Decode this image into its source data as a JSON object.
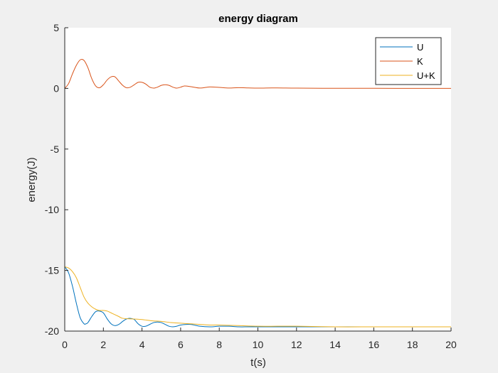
{
  "figure": {
    "background": "#f0f0f0",
    "axes_background": "#ffffff"
  },
  "chart_data": {
    "type": "line",
    "title": "energy diagram",
    "xlabel": "t(s)",
    "ylabel": "energy(J)",
    "xlim": [
      0,
      20
    ],
    "ylim": [
      -20,
      5
    ],
    "xticks": [
      0,
      2,
      4,
      6,
      8,
      10,
      12,
      14,
      16,
      18,
      20
    ],
    "yticks": [
      -20,
      -15,
      -10,
      -5,
      0,
      5
    ],
    "grid": false,
    "legend_position": "top-right",
    "series": [
      {
        "name": "U",
        "color": "#0072bd",
        "x": [
          0,
          0.2,
          0.4,
          0.6,
          0.8,
          1.0,
          1.1,
          1.2,
          1.4,
          1.6,
          1.8,
          2.0,
          2.2,
          2.4,
          2.6,
          2.8,
          3.0,
          3.2,
          3.4,
          3.6,
          3.8,
          4.0,
          4.2,
          4.4,
          4.6,
          4.8,
          5.0,
          5.2,
          5.4,
          5.6,
          5.8,
          6.0,
          6.5,
          7.0,
          7.5,
          8.0,
          8.5,
          9.0,
          9.5,
          10,
          11,
          12,
          14,
          16,
          18,
          20
        ],
        "y": [
          -14.7,
          -15.2,
          -16.3,
          -17.7,
          -18.9,
          -19.4,
          -19.4,
          -19.3,
          -18.8,
          -18.4,
          -18.35,
          -18.5,
          -19.0,
          -19.4,
          -19.55,
          -19.45,
          -19.2,
          -19.0,
          -18.95,
          -19.05,
          -19.4,
          -19.6,
          -19.6,
          -19.45,
          -19.3,
          -19.25,
          -19.3,
          -19.45,
          -19.6,
          -19.65,
          -19.6,
          -19.5,
          -19.45,
          -19.6,
          -19.65,
          -19.6,
          -19.6,
          -19.65,
          -19.65,
          -19.65,
          -19.65,
          -19.65,
          -19.65,
          -19.65,
          -19.65,
          -19.65
        ]
      },
      {
        "name": "K",
        "color": "#d95319",
        "x": [
          0,
          0.2,
          0.4,
          0.6,
          0.8,
          1.0,
          1.2,
          1.4,
          1.6,
          1.8,
          2.0,
          2.2,
          2.4,
          2.6,
          2.8,
          3.0,
          3.2,
          3.4,
          3.6,
          3.8,
          4.0,
          4.2,
          4.4,
          4.6,
          4.8,
          5.0,
          5.2,
          5.4,
          5.6,
          5.8,
          6.0,
          6.2,
          6.5,
          7.0,
          7.5,
          8.0,
          8.5,
          9.0,
          9.5,
          10,
          11,
          12,
          14,
          16,
          18,
          20
        ],
        "y": [
          0,
          0.4,
          1.2,
          1.9,
          2.35,
          2.3,
          1.7,
          0.8,
          0.2,
          0.05,
          0.3,
          0.7,
          0.95,
          0.95,
          0.6,
          0.25,
          0.05,
          0.1,
          0.3,
          0.5,
          0.5,
          0.35,
          0.1,
          0.02,
          0.1,
          0.25,
          0.3,
          0.25,
          0.1,
          0.02,
          0.1,
          0.2,
          0.15,
          0.03,
          0.12,
          0.08,
          0.03,
          0.06,
          0.04,
          0.02,
          0.04,
          0.02,
          0.01,
          0.01,
          0.0,
          0.0
        ]
      },
      {
        "name": "U+K",
        "color": "#edb120",
        "x": [
          0,
          0.2,
          0.4,
          0.6,
          0.8,
          1.0,
          1.2,
          1.4,
          1.6,
          1.8,
          2.0,
          2.2,
          2.4,
          2.6,
          2.8,
          3.0,
          3.5,
          4.0,
          4.5,
          5.0,
          5.5,
          6.0,
          6.5,
          7.0,
          7.5,
          8.0,
          9.0,
          10,
          11,
          12,
          14,
          16,
          18,
          20
        ],
        "y": [
          -14.7,
          -14.8,
          -15.1,
          -15.6,
          -16.4,
          -17.2,
          -17.7,
          -18.0,
          -18.2,
          -18.3,
          -18.3,
          -18.35,
          -18.5,
          -18.65,
          -18.8,
          -18.95,
          -19.0,
          -19.05,
          -19.15,
          -19.2,
          -19.3,
          -19.35,
          -19.4,
          -19.45,
          -19.5,
          -19.5,
          -19.55,
          -19.6,
          -19.6,
          -19.6,
          -19.65,
          -19.65,
          -19.65,
          -19.65
        ]
      }
    ]
  }
}
